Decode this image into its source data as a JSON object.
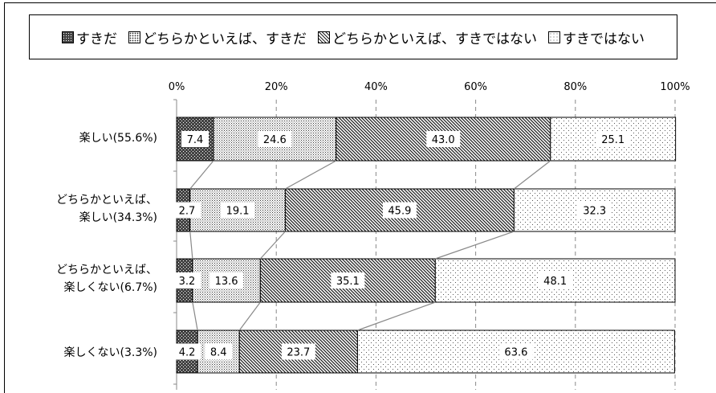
{
  "chart_data": {
    "type": "bar",
    "orientation": "horizontal",
    "stacked": true,
    "percent_stacked": true,
    "categories": [
      [
        "楽しい(55.6%)"
      ],
      [
        "どちらかといえば、",
        "楽しい(34.3%)"
      ],
      [
        "どちらかといえば、",
        "楽しくない(6.7%)"
      ],
      [
        "楽しくない(3.3%)"
      ]
    ],
    "series": [
      {
        "name": "すきだ",
        "values": [
          7.4,
          2.7,
          3.2,
          4.2
        ]
      },
      {
        "name": "どちらかといえば、すきだ",
        "values": [
          24.6,
          19.1,
          13.6,
          8.4
        ]
      },
      {
        "name": "どちらかといえば、すきではない",
        "values": [
          43.0,
          45.9,
          35.1,
          23.7
        ]
      },
      {
        "name": "すきではない",
        "values": [
          25.1,
          32.3,
          48.1,
          63.6
        ]
      }
    ],
    "data_labels": [
      [
        "7.4",
        "24.6",
        "43.0",
        "25.1"
      ],
      [
        "2.7",
        "19.1",
        "45.9",
        "32.3"
      ],
      [
        "3.2",
        "13.6",
        "35.1",
        "48.1"
      ],
      [
        "4.2",
        "8.4",
        "23.7",
        "63.6"
      ]
    ],
    "xlim": [
      0,
      100
    ],
    "x_ticks": [
      "0%",
      "20%",
      "40%",
      "60%",
      "80%",
      "100%"
    ],
    "grid": "vertical dashed",
    "legend_position": "top",
    "series_lines": true
  }
}
